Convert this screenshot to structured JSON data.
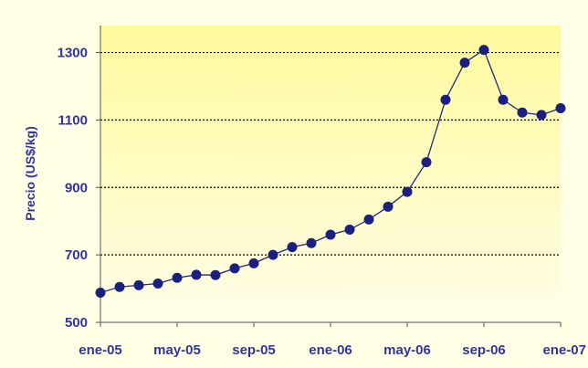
{
  "colors": {
    "background_outer": "#ffffe6",
    "plot_fill_top": "#fffa9c",
    "plot_fill_bottom": "#fffde8",
    "text": "#3333a0",
    "line": "#1f2a7a",
    "marker": "#1a1f80",
    "grid": "#000000",
    "axis": "#555555"
  },
  "chart_data": {
    "type": "line",
    "title": "",
    "xlabel": "",
    "ylabel": "Precio  (US$/kg)",
    "ylim": [
      500,
      1300
    ],
    "yticks": [
      500,
      700,
      900,
      1100,
      1300
    ],
    "grid": "horizontal dotted",
    "legend": "none",
    "x_start": "ene-05",
    "x_end": "ene-07",
    "xtick_labels": [
      "ene-05",
      "may-05",
      "sep-05",
      "ene-06",
      "may-06",
      "sep-06",
      "ene-07"
    ],
    "series": [
      {
        "name": "",
        "x": [
          "ene-05",
          "feb-05",
          "mar-05",
          "abr-05",
          "may-05",
          "jun-05",
          "jul-05",
          "ago-05",
          "sep-05",
          "oct-05",
          "nov-05",
          "dic-05",
          "ene-06",
          "feb-06",
          "mar-06",
          "abr-06",
          "may-06",
          "jun-06",
          "jul-06",
          "ago-06",
          "sep-06",
          "oct-06",
          "nov-06",
          "dic-06",
          "ene-07"
        ],
        "values": [
          588,
          605,
          610,
          615,
          632,
          641,
          640,
          660,
          675,
          700,
          723,
          735,
          760,
          775,
          805,
          843,
          887,
          975,
          1160,
          1270,
          1308,
          1160,
          1122,
          1115,
          1135
        ]
      }
    ]
  }
}
